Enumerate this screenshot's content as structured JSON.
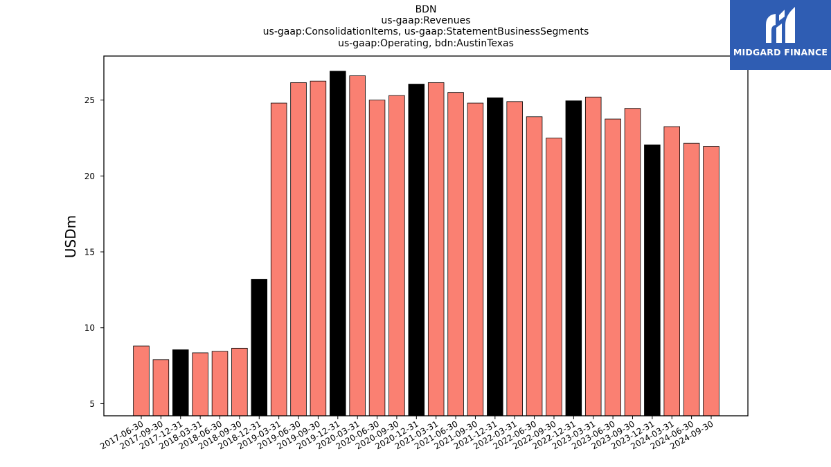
{
  "chart_data": {
    "type": "bar",
    "title_lines": [
      "BDN",
      "us-gaap:Revenues",
      "us-gaap:ConsolidationItems, us-gaap:StatementBusinessSegments",
      "us-gaap:Operating, bdn:AustinTexas"
    ],
    "xlabel": "",
    "ylabel": "USDm",
    "ylim": [
      4.2,
      27.9
    ],
    "yticks": [
      5,
      10,
      15,
      20,
      25
    ],
    "grid": false,
    "categories": [
      "2017-06-30",
      "2017-09-30",
      "2017-12-31",
      "2018-03-31",
      "2018-06-30",
      "2018-09-30",
      "2018-12-31",
      "2019-03-31",
      "2019-06-30",
      "2019-09-30",
      "2019-12-31",
      "2020-03-31",
      "2020-06-30",
      "2020-09-30",
      "2020-12-31",
      "2021-03-31",
      "2021-06-30",
      "2021-09-30",
      "2021-12-31",
      "2022-03-31",
      "2022-06-30",
      "2022-09-30",
      "2022-12-31",
      "2023-03-31",
      "2023-06-30",
      "2023-09-30",
      "2023-12-31",
      "2024-03-31",
      "2024-06-30",
      "2024-09-30"
    ],
    "values": [
      8.8,
      7.9,
      8.55,
      8.35,
      8.45,
      8.65,
      13.2,
      24.8,
      26.15,
      26.25,
      26.9,
      26.6,
      25.0,
      25.3,
      26.05,
      26.15,
      25.5,
      24.8,
      25.15,
      24.9,
      23.9,
      22.5,
      24.95,
      25.2,
      23.75,
      24.45,
      22.05,
      23.25,
      22.15,
      21.95
    ],
    "colors": {
      "quarter": "#fa8072",
      "year_end": "#000000",
      "edge": "#000000"
    }
  },
  "logo": {
    "text": "MIDGARD FINANCE",
    "background": "#2f5db3"
  }
}
